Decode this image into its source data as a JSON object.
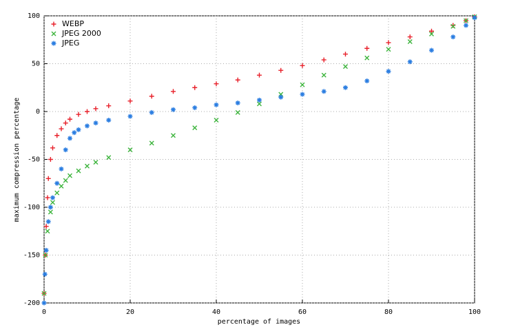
{
  "chart_data": {
    "type": "scatter",
    "xlabel": "percentage of images",
    "ylabel": "maximum compression percentage",
    "xlim": [
      0,
      100
    ],
    "ylim": [
      -200,
      100
    ],
    "xticks": [
      0,
      20,
      40,
      60,
      80,
      100
    ],
    "yticks": [
      -200,
      -150,
      -100,
      -50,
      0,
      50,
      100
    ],
    "grid": true,
    "legend": "top-left",
    "series": [
      {
        "name": "WEBP",
        "color": "#e8202a",
        "marker": "plus",
        "x": [
          0,
          0.3,
          0.5,
          0.8,
          1,
          1.5,
          2,
          3,
          4,
          5,
          6,
          8,
          10,
          12,
          15,
          20,
          25,
          30,
          35,
          40,
          45,
          50,
          55,
          60,
          65,
          70,
          75,
          80,
          85,
          90,
          95,
          98,
          100
        ],
        "values": [
          -190,
          -150,
          -120,
          -90,
          -70,
          -50,
          -38,
          -25,
          -18,
          -12,
          -8,
          -3,
          0,
          3,
          6,
          11,
          16,
          21,
          25,
          29,
          33,
          38,
          43,
          48,
          54,
          60,
          66,
          72,
          78,
          84,
          90,
          95,
          99
        ]
      },
      {
        "name": "JPEG 2000",
        "color": "#3cb43c",
        "marker": "cross",
        "x": [
          0,
          0.3,
          0.8,
          1.5,
          2,
          3,
          4,
          5,
          6,
          8,
          10,
          12,
          15,
          20,
          25,
          30,
          35,
          40,
          45,
          50,
          55,
          60,
          65,
          70,
          75,
          80,
          85,
          90,
          95,
          98,
          100
        ],
        "values": [
          -190,
          -150,
          -125,
          -105,
          -95,
          -85,
          -78,
          -72,
          -67,
          -62,
          -57,
          -53,
          -48,
          -40,
          -33,
          -25,
          -17,
          -9,
          -1,
          8,
          18,
          28,
          38,
          47,
          56,
          65,
          73,
          81,
          89,
          95,
          99
        ]
      },
      {
        "name": "JPEG",
        "color": "#2a7de1",
        "marker": "star",
        "x": [
          0,
          0.2,
          0.5,
          1,
          1.5,
          2,
          3,
          4,
          5,
          6,
          7,
          8,
          10,
          12,
          15,
          20,
          25,
          30,
          35,
          40,
          45,
          50,
          55,
          60,
          65,
          70,
          75,
          80,
          85,
          90,
          95,
          98,
          100
        ],
        "values": [
          -200,
          -170,
          -145,
          -115,
          -100,
          -90,
          -75,
          -60,
          -40,
          -28,
          -22,
          -19,
          -15,
          -12,
          -9,
          -5,
          -1,
          2,
          4,
          7,
          9,
          12,
          15,
          18,
          21,
          25,
          32,
          42,
          52,
          64,
          78,
          90,
          98
        ]
      }
    ]
  }
}
